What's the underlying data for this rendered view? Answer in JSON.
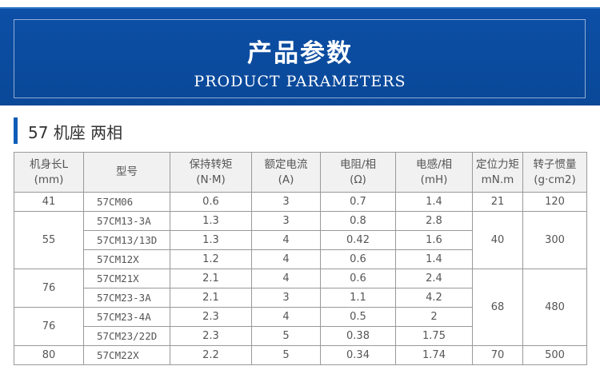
{
  "banner": {
    "title": "产品参数",
    "subtitle": "PRODUCT PARAMETERS"
  },
  "section": {
    "title": "57 机座 两相"
  },
  "table": {
    "headers": [
      {
        "line1": "机身长L",
        "line2": "(mm)"
      },
      {
        "line1": "型号",
        "line2": ""
      },
      {
        "line1": "保持转矩",
        "line2": "(N·M)"
      },
      {
        "line1": "额定电流",
        "line2": "(A)"
      },
      {
        "line1": "电阻/相",
        "line2": "(Ω)"
      },
      {
        "line1": "电感/相",
        "line2": "(mH)"
      },
      {
        "line1": "定位力矩",
        "line2": "mN.m"
      },
      {
        "line1": "转子惯量",
        "line2": "(g·cm2)"
      }
    ],
    "groups": {
      "len_41": "41",
      "len_55": "55",
      "len_76a": "76",
      "len_76b": "76",
      "len_80": "80",
      "detent_21": "21",
      "detent_40": "40",
      "detent_68": "68",
      "detent_70": "70",
      "inertia_120": "120",
      "inertia_300": "300",
      "inertia_480": "480",
      "inertia_500": "500"
    },
    "rows": [
      {
        "model": "57CM06",
        "torque": "0.6",
        "current": "3",
        "resistance": "0.7",
        "inductance": "1.4"
      },
      {
        "model": "57CM13-3A",
        "torque": "1.3",
        "current": "3",
        "resistance": "0.8",
        "inductance": "2.8"
      },
      {
        "model": "57CM13/13D",
        "torque": "1.3",
        "current": "4",
        "resistance": "0.42",
        "inductance": "1.6"
      },
      {
        "model": "57CM12X",
        "torque": "1.2",
        "current": "4",
        "resistance": "0.6",
        "inductance": "1.4"
      },
      {
        "model": "57CM21X",
        "torque": "2.1",
        "current": "4",
        "resistance": "0.6",
        "inductance": "2.4"
      },
      {
        "model": "57CM23-3A",
        "torque": "2.1",
        "current": "3",
        "resistance": "1.1",
        "inductance": "4.2"
      },
      {
        "model": "57CM23-4A",
        "torque": "2.3",
        "current": "4",
        "resistance": "0.5",
        "inductance": "2"
      },
      {
        "model": "57CM23/22D",
        "torque": "2.3",
        "current": "5",
        "resistance": "0.38",
        "inductance": "1.75"
      },
      {
        "model": "57CM22X",
        "torque": "2.2",
        "current": "5",
        "resistance": "0.34",
        "inductance": "1.74"
      }
    ]
  }
}
